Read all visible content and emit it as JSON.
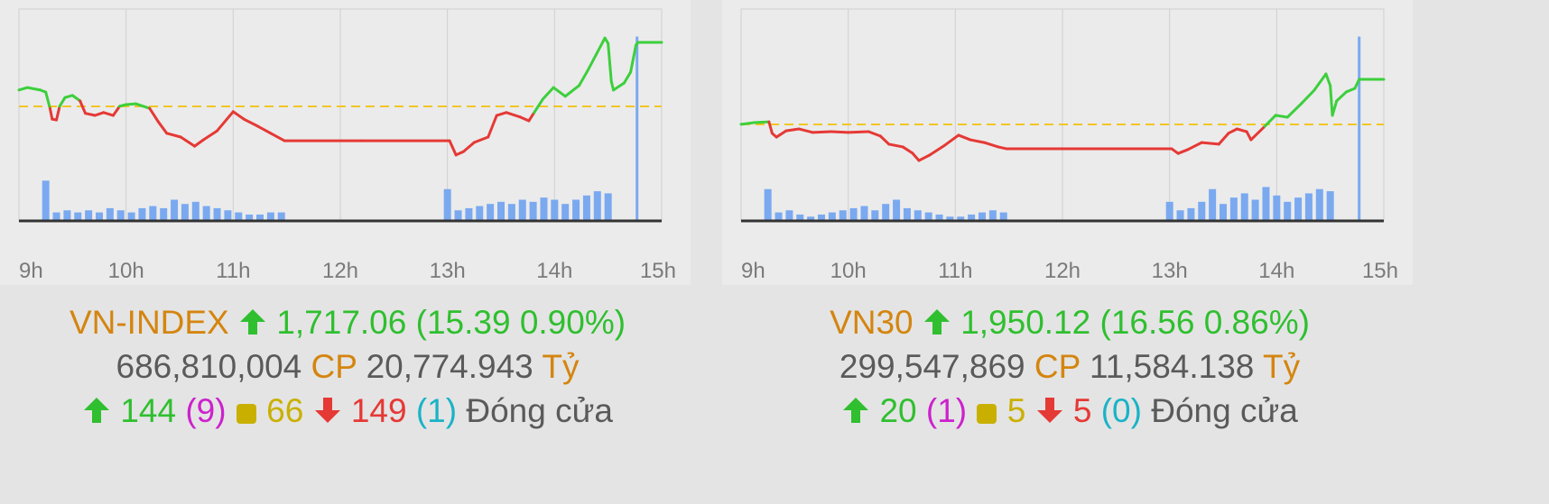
{
  "chart_data": [
    {
      "type": "line",
      "x": [
        9.0,
        9.08,
        9.2,
        9.25,
        9.29,
        9.31,
        9.35,
        9.38,
        9.43,
        9.5,
        9.57,
        9.62,
        9.71,
        9.79,
        9.88,
        9.94,
        10.0,
        10.09,
        10.22,
        10.3,
        10.38,
        10.51,
        10.64,
        10.72,
        10.85,
        11.0,
        11.1,
        11.23,
        11.35,
        11.48,
        12.2,
        13.02,
        13.08,
        13.15,
        13.25,
        13.38,
        13.46,
        13.55,
        13.68,
        13.76,
        13.81,
        13.89,
        13.99,
        14.1,
        14.23,
        14.31,
        14.39,
        14.47,
        14.5,
        14.53,
        14.55,
        14.65,
        14.71,
        14.76,
        14.78,
        15.0
      ],
      "values": [
        1705.6,
        1706.2,
        1705.6,
        1705.1,
        1701.2,
        1698.6,
        1698.4,
        1701.7,
        1703.8,
        1704.3,
        1703.0,
        1700.0,
        1699.5,
        1700.2,
        1699.5,
        1701.7,
        1702.1,
        1702.3,
        1701.2,
        1698.0,
        1695.2,
        1694.3,
        1692.1,
        1693.6,
        1695.8,
        1700.4,
        1698.6,
        1696.9,
        1695.2,
        1693.4,
        1693.4,
        1693.4,
        1690.0,
        1690.8,
        1693.0,
        1694.3,
        1699.5,
        1700.2,
        1699.1,
        1698.2,
        1700.2,
        1703.4,
        1706.2,
        1704.1,
        1706.7,
        1710.3,
        1714.2,
        1718.1,
        1716.8,
        1707.7,
        1705.6,
        1707.3,
        1709.9,
        1716.4,
        1717.06,
        1717.06
      ],
      "reference": 1701.67,
      "up_color": "#3ccf3c",
      "down_color": "#e53935",
      "reference_color": "#f2c623",
      "volume": {
        "color": "#7aa9f0",
        "x": [
          9.25,
          9.35,
          9.45,
          9.55,
          9.65,
          9.75,
          9.85,
          9.95,
          10.05,
          10.15,
          10.25,
          10.35,
          10.45,
          10.55,
          10.65,
          10.75,
          10.85,
          10.95,
          11.05,
          11.15,
          11.25,
          11.35,
          11.45,
          13.0,
          13.1,
          13.2,
          13.3,
          13.4,
          13.5,
          13.6,
          13.7,
          13.8,
          13.9,
          14.0,
          14.1,
          14.2,
          14.3,
          14.4,
          14.5,
          14.77
        ],
        "values": [
          19,
          4,
          5,
          4,
          5,
          4,
          6,
          5,
          4,
          6,
          7,
          6,
          10,
          8,
          9,
          7,
          6,
          5,
          4,
          3,
          3,
          4,
          4,
          15,
          5,
          6,
          7,
          8,
          9,
          8,
          10,
          9,
          11,
          10,
          8,
          10,
          12,
          14,
          13,
          87
        ]
      },
      "volume_lim": [
        0,
        100
      ],
      "xlim": [
        9,
        15
      ],
      "ylim": [
        1674.14,
        1725.08
      ],
      "xticks": [
        {
          "value": 9,
          "label": "9h"
        },
        {
          "value": 10,
          "label": "10h"
        },
        {
          "value": 11,
          "label": "11h"
        },
        {
          "value": 12,
          "label": "12h"
        },
        {
          "value": 13,
          "label": "13h"
        },
        {
          "value": 14,
          "label": "14h"
        },
        {
          "value": 15,
          "label": "15h"
        }
      ],
      "grid": true
    },
    {
      "type": "line",
      "x": [
        9.0,
        9.12,
        9.26,
        9.29,
        9.33,
        9.42,
        9.54,
        9.67,
        9.84,
        10.0,
        10.19,
        10.3,
        10.38,
        10.51,
        10.6,
        10.66,
        10.76,
        10.89,
        11.03,
        11.14,
        11.27,
        11.4,
        11.48,
        12.2,
        13.02,
        13.08,
        13.17,
        13.3,
        13.46,
        13.55,
        13.63,
        13.72,
        13.76,
        13.89,
        13.99,
        14.1,
        14.23,
        14.35,
        14.46,
        14.5,
        14.52,
        14.56,
        14.65,
        14.73,
        14.77,
        15.0
      ],
      "values": [
        1933.6,
        1934.2,
        1934.5,
        1930.3,
        1928.9,
        1931.2,
        1931.9,
        1930.6,
        1930.9,
        1930.6,
        1930.9,
        1929.3,
        1926.3,
        1925.3,
        1923.0,
        1920.3,
        1922.3,
        1925.6,
        1929.6,
        1927.9,
        1926.9,
        1925.3,
        1924.6,
        1924.6,
        1924.6,
        1922.9,
        1924.3,
        1926.9,
        1926.3,
        1930.3,
        1931.9,
        1930.9,
        1927.9,
        1932.9,
        1936.9,
        1936.2,
        1941.2,
        1946.1,
        1952.1,
        1947.8,
        1936.9,
        1942.2,
        1945.5,
        1946.8,
        1950.12,
        1950.12
      ],
      "reference": 1933.56,
      "up_color": "#3ccf3c",
      "down_color": "#e53935",
      "reference_color": "#f2c623",
      "volume": {
        "color": "#7aa9f0",
        "x": [
          9.25,
          9.35,
          9.45,
          9.55,
          9.65,
          9.75,
          9.85,
          9.95,
          10.05,
          10.15,
          10.25,
          10.35,
          10.45,
          10.55,
          10.65,
          10.75,
          10.85,
          10.95,
          11.05,
          11.15,
          11.25,
          11.35,
          11.45,
          13.0,
          13.1,
          13.2,
          13.3,
          13.4,
          13.5,
          13.6,
          13.7,
          13.8,
          13.9,
          14.0,
          14.1,
          14.2,
          14.3,
          14.4,
          14.5,
          14.77
        ],
        "values": [
          15,
          4,
          5,
          3,
          2,
          3,
          4,
          5,
          6,
          7,
          5,
          8,
          10,
          6,
          5,
          4,
          3,
          2,
          2,
          3,
          4,
          5,
          4,
          9,
          5,
          6,
          9,
          15,
          8,
          11,
          13,
          10,
          16,
          12,
          9,
          11,
          13,
          15,
          14,
          87
        ]
      },
      "volume_lim": [
        0,
        100
      ],
      "xlim": [
        9,
        15
      ],
      "ylim": [
        1898.12,
        1975.95
      ],
      "xticks": [
        {
          "value": 9,
          "label": "9h"
        },
        {
          "value": 10,
          "label": "10h"
        },
        {
          "value": 11,
          "label": "11h"
        },
        {
          "value": 12,
          "label": "12h"
        },
        {
          "value": 13,
          "label": "13h"
        },
        {
          "value": 14,
          "label": "14h"
        },
        {
          "value": 15,
          "label": "15h"
        }
      ],
      "grid": true
    }
  ],
  "panels": [
    {
      "index": "VN-INDEX",
      "price": "1,717.06",
      "change": "(15.39 0.90%)",
      "volume": "686,810,004",
      "volume_unit": "CP",
      "value": "20,774.943",
      "value_unit": "Tỷ",
      "advances": "144",
      "ceiling": "(9)",
      "unchanged": "66",
      "declines": "149",
      "floor": "(1)",
      "status": "Đóng cửa"
    },
    {
      "index": "VN30",
      "price": "1,950.12",
      "change": "(16.56 0.86%)",
      "volume": "299,547,869",
      "volume_unit": "CP",
      "value": "11,584.138",
      "value_unit": "Tỷ",
      "advances": "20",
      "ceiling": "(1)",
      "unchanged": "5",
      "declines": "5",
      "floor": "(0)",
      "status": "Đóng cửa"
    }
  ]
}
